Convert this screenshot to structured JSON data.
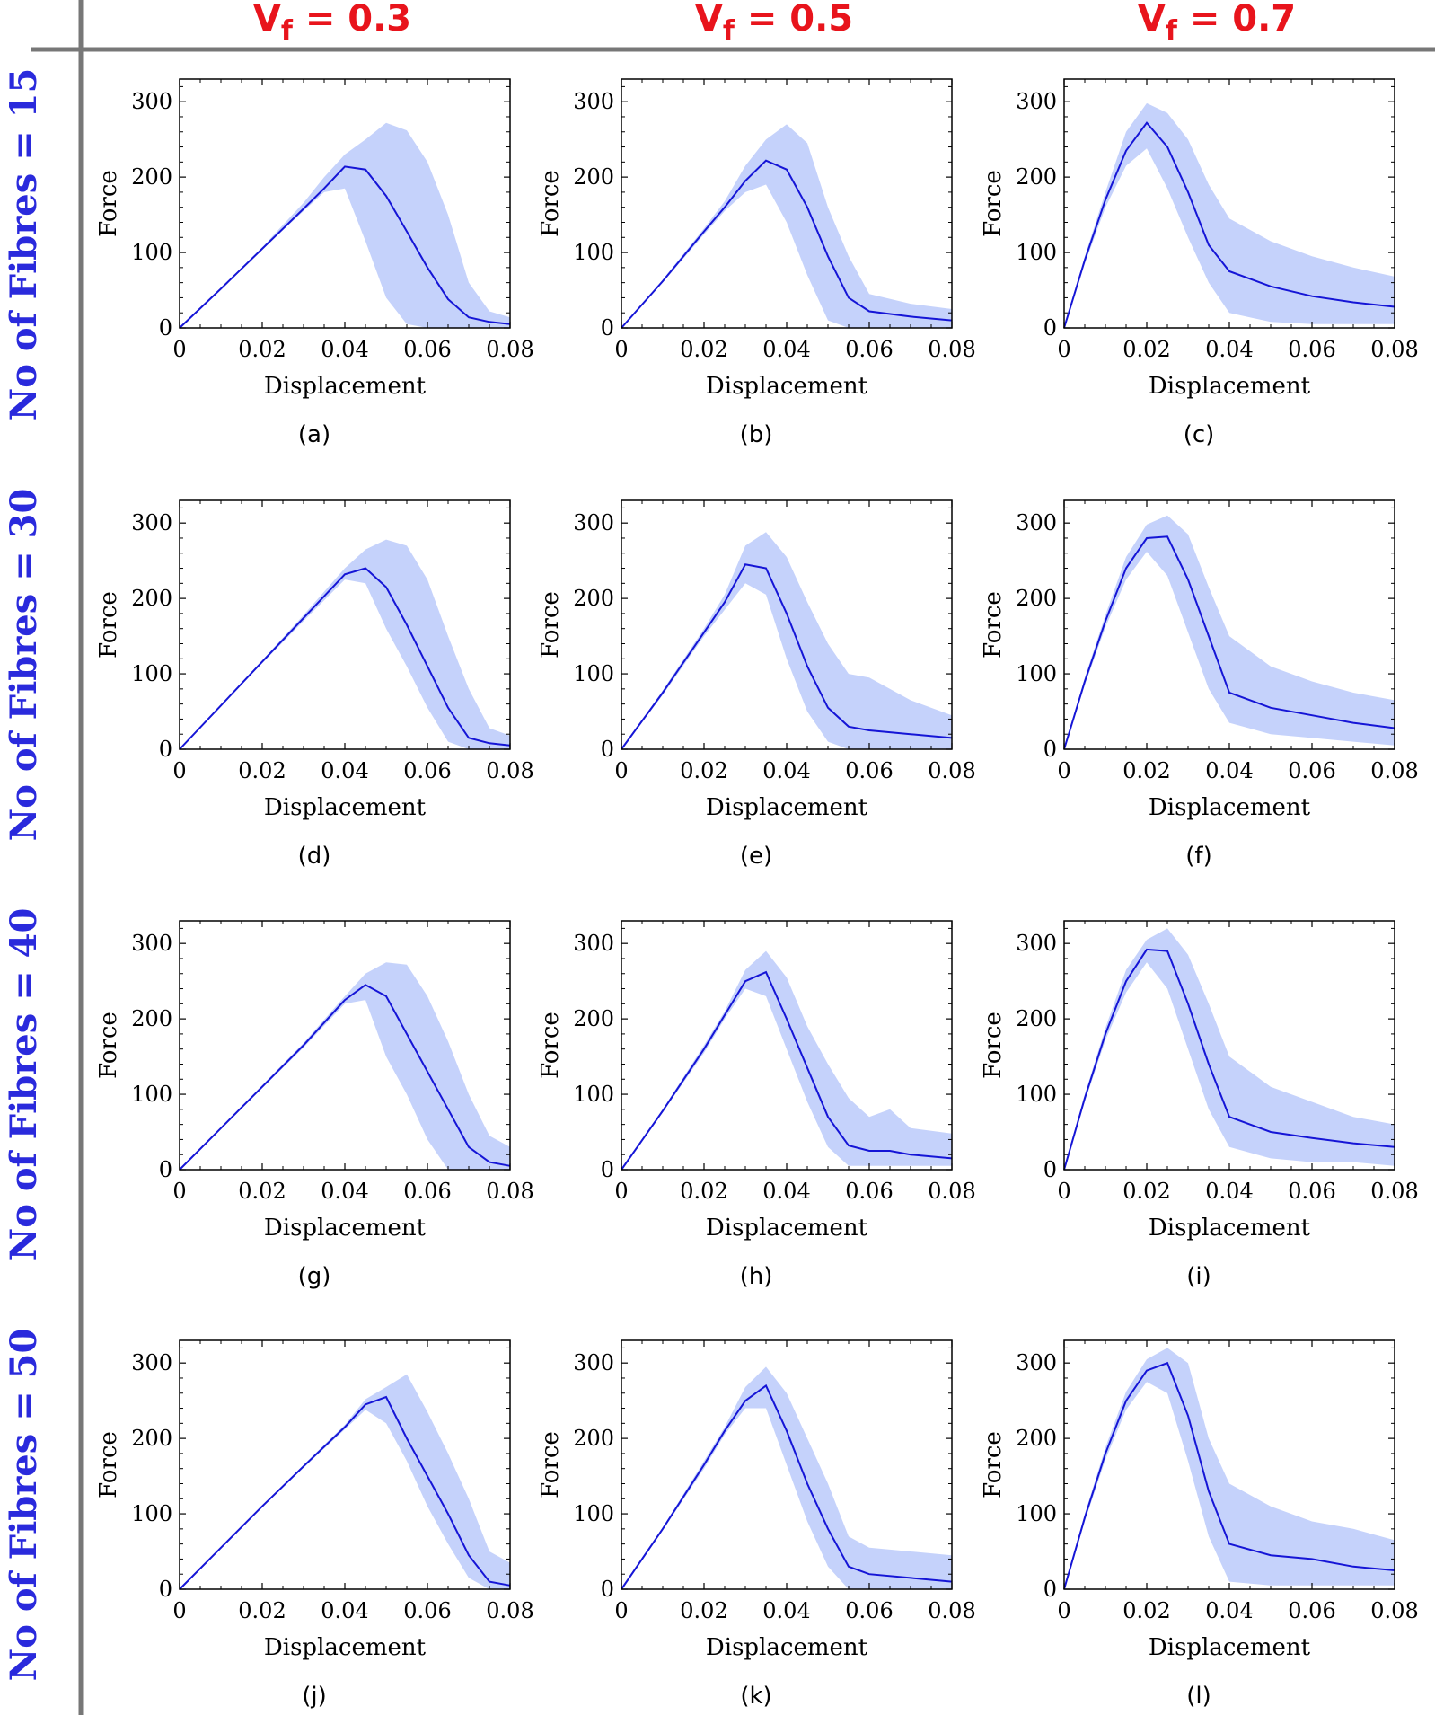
{
  "figure": {
    "column_headers": [
      "0.3",
      "0.5",
      "0.7"
    ],
    "column_header_var": "V",
    "column_header_sub": "f",
    "column_header_eq": "=",
    "row_headers": [
      "No of Fibres = 15",
      "No of Fibres = 30",
      "No of Fibres = 40",
      "No of Fibres = 50"
    ],
    "colors": {
      "header_col": "#e8141c",
      "header_row": "#2a2adc",
      "divider": "#777777",
      "line": "#1515d6",
      "band": "#c5d2fb"
    }
  },
  "chart_data": [
    {
      "type": "line",
      "label": "(a)",
      "xlabel": "Displacement",
      "ylabel": "Force",
      "xlim": [
        0,
        0.08
      ],
      "ylim": [
        0,
        330
      ],
      "xticks": [
        "0",
        "0.02",
        "0.04",
        "0.06",
        "0.08"
      ],
      "yticks": [
        "0",
        "100",
        "200",
        "300"
      ],
      "x": [
        0,
        0.01,
        0.02,
        0.03,
        0.035,
        0.04,
        0.045,
        0.05,
        0.055,
        0.06,
        0.065,
        0.07,
        0.075,
        0.08
      ],
      "mean": [
        0,
        52,
        105,
        158,
        185,
        214,
        210,
        175,
        128,
        80,
        38,
        14,
        8,
        5
      ],
      "upper": [
        0,
        53,
        107,
        166,
        200,
        230,
        250,
        272,
        262,
        220,
        150,
        60,
        22,
        14
      ],
      "lower": [
        0,
        51,
        104,
        155,
        180,
        185,
        115,
        40,
        5,
        0,
        0,
        0,
        0,
        0
      ]
    },
    {
      "type": "line",
      "label": "(b)",
      "xlabel": "Displacement",
      "ylabel": "Force",
      "xlim": [
        0,
        0.08
      ],
      "ylim": [
        0,
        330
      ],
      "xticks": [
        "0",
        "0.02",
        "0.04",
        "0.06",
        "0.08"
      ],
      "yticks": [
        "0",
        "100",
        "200",
        "300"
      ],
      "x": [
        0,
        0.01,
        0.02,
        0.025,
        0.03,
        0.035,
        0.04,
        0.045,
        0.05,
        0.055,
        0.06,
        0.07,
        0.08
      ],
      "mean": [
        0,
        62,
        128,
        160,
        195,
        222,
        210,
        160,
        95,
        40,
        22,
        15,
        10
      ],
      "upper": [
        0,
        64,
        132,
        168,
        215,
        250,
        270,
        245,
        160,
        95,
        45,
        32,
        25
      ],
      "lower": [
        0,
        60,
        124,
        155,
        180,
        190,
        140,
        70,
        10,
        0,
        0,
        0,
        0
      ]
    },
    {
      "type": "line",
      "label": "(c)",
      "xlabel": "Displacement",
      "ylabel": "Force",
      "xlim": [
        0,
        0.08
      ],
      "ylim": [
        0,
        330
      ],
      "xticks": [
        "0",
        "0.02",
        "0.04",
        "0.06",
        "0.08"
      ],
      "yticks": [
        "0",
        "100",
        "200",
        "300"
      ],
      "x": [
        0,
        0.005,
        0.01,
        0.015,
        0.02,
        0.025,
        0.03,
        0.035,
        0.04,
        0.05,
        0.06,
        0.07,
        0.08
      ],
      "mean": [
        0,
        90,
        170,
        235,
        272,
        240,
        180,
        110,
        75,
        55,
        42,
        34,
        28
      ],
      "upper": [
        0,
        95,
        180,
        260,
        298,
        285,
        250,
        190,
        145,
        115,
        95,
        80,
        68
      ],
      "lower": [
        0,
        85,
        160,
        215,
        238,
        185,
        120,
        60,
        20,
        8,
        5,
        5,
        5
      ]
    },
    {
      "type": "line",
      "label": "(d)",
      "xlabel": "Displacement",
      "ylabel": "Force",
      "xlim": [
        0,
        0.08
      ],
      "ylim": [
        0,
        330
      ],
      "xticks": [
        "0",
        "0.02",
        "0.04",
        "0.06",
        "0.08"
      ],
      "yticks": [
        "0",
        "100",
        "200",
        "300"
      ],
      "x": [
        0,
        0.01,
        0.02,
        0.03,
        0.04,
        0.045,
        0.05,
        0.055,
        0.06,
        0.065,
        0.07,
        0.075,
        0.08
      ],
      "mean": [
        0,
        58,
        116,
        174,
        232,
        240,
        215,
        165,
        110,
        55,
        15,
        8,
        5
      ],
      "upper": [
        0,
        59,
        118,
        178,
        240,
        265,
        278,
        270,
        225,
        150,
        80,
        28,
        18
      ],
      "lower": [
        0,
        57,
        114,
        170,
        225,
        220,
        160,
        110,
        55,
        10,
        0,
        0,
        0
      ]
    },
    {
      "type": "line",
      "label": "(e)",
      "xlabel": "Displacement",
      "ylabel": "Force",
      "xlim": [
        0,
        0.08
      ],
      "ylim": [
        0,
        330
      ],
      "xticks": [
        "0",
        "0.02",
        "0.04",
        "0.06",
        "0.08"
      ],
      "yticks": [
        "0",
        "100",
        "200",
        "300"
      ],
      "x": [
        0,
        0.01,
        0.02,
        0.025,
        0.03,
        0.035,
        0.04,
        0.045,
        0.05,
        0.055,
        0.06,
        0.07,
        0.08
      ],
      "mean": [
        0,
        75,
        155,
        195,
        245,
        240,
        180,
        110,
        55,
        30,
        25,
        20,
        15
      ],
      "upper": [
        0,
        78,
        160,
        205,
        270,
        288,
        255,
        195,
        140,
        100,
        95,
        65,
        45
      ],
      "lower": [
        0,
        72,
        150,
        185,
        220,
        205,
        120,
        50,
        10,
        0,
        0,
        0,
        0
      ]
    },
    {
      "type": "line",
      "label": "(f)",
      "xlabel": "Displacement",
      "ylabel": "Force",
      "xlim": [
        0,
        0.08
      ],
      "ylim": [
        0,
        330
      ],
      "xticks": [
        "0",
        "0.02",
        "0.04",
        "0.06",
        "0.08"
      ],
      "yticks": [
        "0",
        "100",
        "200",
        "300"
      ],
      "x": [
        0,
        0.005,
        0.01,
        0.015,
        0.02,
        0.025,
        0.03,
        0.035,
        0.04,
        0.05,
        0.06,
        0.07,
        0.08
      ],
      "mean": [
        0,
        90,
        170,
        240,
        280,
        282,
        225,
        150,
        75,
        55,
        45,
        35,
        28
      ],
      "upper": [
        0,
        95,
        178,
        255,
        298,
        310,
        285,
        215,
        150,
        110,
        90,
        75,
        65
      ],
      "lower": [
        0,
        85,
        162,
        225,
        262,
        230,
        155,
        80,
        35,
        20,
        15,
        10,
        5
      ]
    },
    {
      "type": "line",
      "label": "(g)",
      "xlabel": "Displacement",
      "ylabel": "Force",
      "xlim": [
        0,
        0.08
      ],
      "ylim": [
        0,
        330
      ],
      "xticks": [
        "0",
        "0.02",
        "0.04",
        "0.06",
        "0.08"
      ],
      "yticks": [
        "0",
        "100",
        "200",
        "300"
      ],
      "x": [
        0,
        0.01,
        0.02,
        0.03,
        0.04,
        0.045,
        0.05,
        0.055,
        0.06,
        0.065,
        0.07,
        0.075,
        0.08
      ],
      "mean": [
        0,
        55,
        110,
        165,
        225,
        245,
        230,
        180,
        130,
        80,
        30,
        10,
        5
      ],
      "upper": [
        0,
        56,
        112,
        168,
        230,
        260,
        275,
        272,
        230,
        170,
        100,
        45,
        30
      ],
      "lower": [
        0,
        54,
        108,
        162,
        220,
        225,
        150,
        100,
        40,
        0,
        0,
        0,
        0
      ]
    },
    {
      "type": "line",
      "label": "(h)",
      "xlabel": "Displacement",
      "ylabel": "Force",
      "xlim": [
        0,
        0.08
      ],
      "ylim": [
        0,
        330
      ],
      "xticks": [
        "0",
        "0.02",
        "0.04",
        "0.06",
        "0.08"
      ],
      "yticks": [
        "0",
        "100",
        "200",
        "300"
      ],
      "x": [
        0,
        0.01,
        0.02,
        0.025,
        0.03,
        0.035,
        0.04,
        0.045,
        0.05,
        0.055,
        0.06,
        0.065,
        0.07,
        0.08
      ],
      "mean": [
        0,
        78,
        160,
        205,
        250,
        262,
        200,
        135,
        70,
        32,
        25,
        25,
        20,
        15
      ],
      "upper": [
        0,
        80,
        165,
        210,
        265,
        290,
        255,
        190,
        140,
        95,
        70,
        80,
        55,
        48
      ],
      "lower": [
        0,
        76,
        155,
        200,
        240,
        230,
        160,
        90,
        30,
        5,
        5,
        5,
        5,
        5
      ]
    },
    {
      "type": "line",
      "label": "(i)",
      "xlabel": "Displacement",
      "ylabel": "Force",
      "xlim": [
        0,
        0.08
      ],
      "ylim": [
        0,
        330
      ],
      "xticks": [
        "0",
        "0.02",
        "0.04",
        "0.06",
        "0.08"
      ],
      "yticks": [
        "0",
        "100",
        "200",
        "300"
      ],
      "x": [
        0,
        0.005,
        0.01,
        0.015,
        0.02,
        0.025,
        0.03,
        0.035,
        0.04,
        0.05,
        0.06,
        0.07,
        0.08
      ],
      "mean": [
        0,
        95,
        180,
        250,
        292,
        290,
        220,
        140,
        70,
        50,
        42,
        35,
        30
      ],
      "upper": [
        0,
        100,
        188,
        265,
        305,
        320,
        285,
        220,
        150,
        110,
        90,
        70,
        60
      ],
      "lower": [
        0,
        90,
        172,
        235,
        275,
        240,
        160,
        80,
        30,
        15,
        10,
        10,
        5
      ]
    },
    {
      "type": "line",
      "label": "(j)",
      "xlabel": "Displacement",
      "ylabel": "Force",
      "xlim": [
        0,
        0.08
      ],
      "ylim": [
        0,
        330
      ],
      "xticks": [
        "0",
        "0.02",
        "0.04",
        "0.06",
        "0.08"
      ],
      "yticks": [
        "0",
        "100",
        "200",
        "300"
      ],
      "x": [
        0,
        0.01,
        0.02,
        0.03,
        0.04,
        0.045,
        0.05,
        0.055,
        0.06,
        0.065,
        0.07,
        0.075,
        0.08
      ],
      "mean": [
        0,
        55,
        110,
        163,
        215,
        245,
        255,
        200,
        150,
        100,
        45,
        10,
        5
      ],
      "upper": [
        0,
        56,
        111,
        165,
        218,
        252,
        268,
        285,
        235,
        180,
        120,
        50,
        35
      ],
      "lower": [
        0,
        54,
        109,
        161,
        212,
        238,
        220,
        170,
        110,
        60,
        15,
        0,
        0
      ]
    },
    {
      "type": "line",
      "label": "(k)",
      "xlabel": "Displacement",
      "ylabel": "Force",
      "xlim": [
        0,
        0.08
      ],
      "ylim": [
        0,
        330
      ],
      "xticks": [
        "0",
        "0.02",
        "0.04",
        "0.06",
        "0.08"
      ],
      "yticks": [
        "0",
        "100",
        "200",
        "300"
      ],
      "x": [
        0,
        0.01,
        0.02,
        0.025,
        0.03,
        0.035,
        0.04,
        0.045,
        0.05,
        0.055,
        0.06,
        0.07,
        0.08
      ],
      "mean": [
        0,
        80,
        165,
        210,
        250,
        270,
        210,
        140,
        80,
        30,
        20,
        15,
        10
      ],
      "upper": [
        0,
        82,
        170,
        215,
        268,
        295,
        260,
        200,
        140,
        70,
        55,
        50,
        45
      ],
      "lower": [
        0,
        78,
        160,
        205,
        240,
        240,
        165,
        90,
        30,
        0,
        0,
        0,
        0
      ]
    },
    {
      "type": "line",
      "label": "(l)",
      "xlabel": "Displacement",
      "ylabel": "Force",
      "xlim": [
        0,
        0.08
      ],
      "ylim": [
        0,
        330
      ],
      "xticks": [
        "0",
        "0.02",
        "0.04",
        "0.06",
        "0.08"
      ],
      "yticks": [
        "0",
        "100",
        "200",
        "300"
      ],
      "x": [
        0,
        0.005,
        0.01,
        0.015,
        0.02,
        0.025,
        0.03,
        0.035,
        0.04,
        0.05,
        0.06,
        0.07,
        0.08
      ],
      "mean": [
        0,
        95,
        180,
        250,
        290,
        300,
        230,
        130,
        60,
        45,
        40,
        30,
        25
      ],
      "upper": [
        0,
        100,
        188,
        262,
        305,
        320,
        300,
        200,
        140,
        110,
        90,
        80,
        65
      ],
      "lower": [
        0,
        90,
        172,
        238,
        275,
        260,
        170,
        70,
        10,
        5,
        5,
        5,
        5
      ]
    }
  ]
}
